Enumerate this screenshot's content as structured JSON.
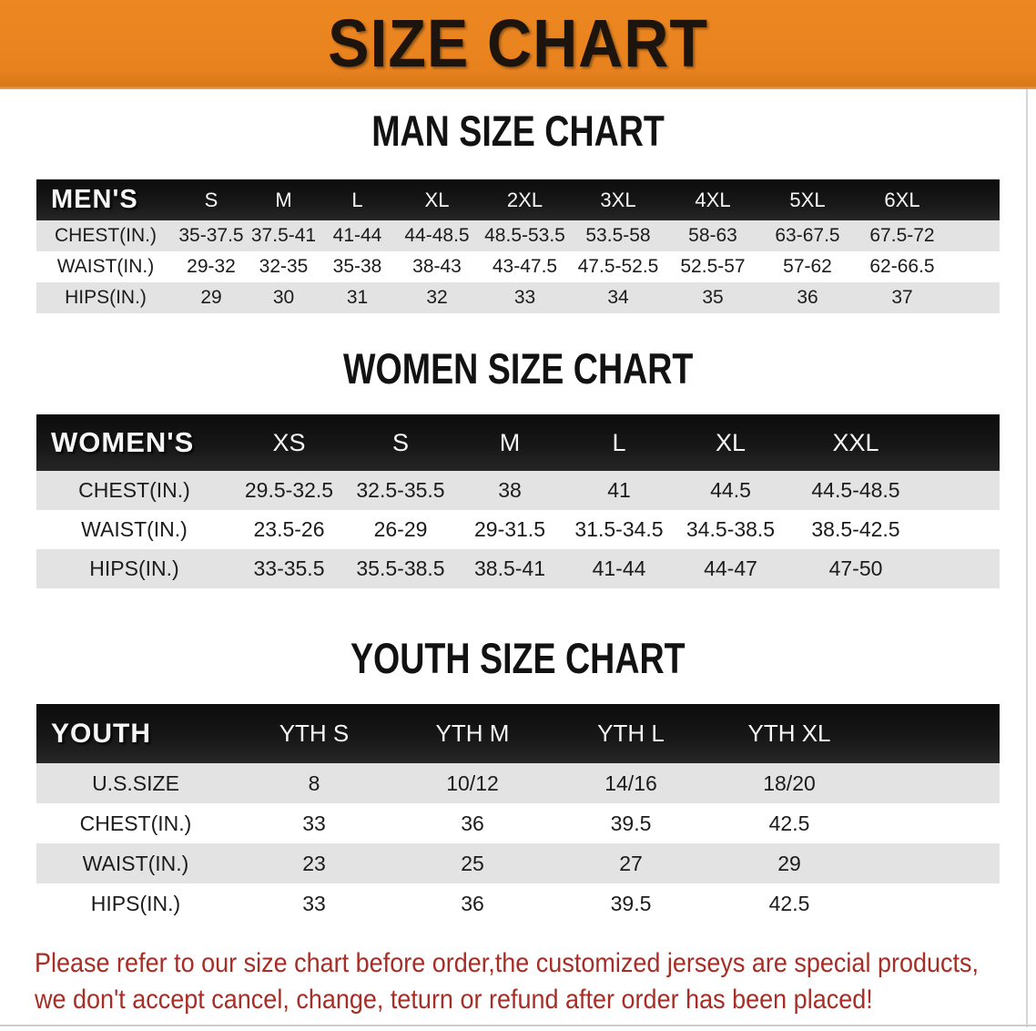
{
  "banner": {
    "title": "SIZE CHART",
    "bg_color": "#E8821E",
    "text_color": "#1C140D"
  },
  "colors": {
    "header_bar": "#151515",
    "row_gray": "#E3E3E3",
    "row_white": "#FFFFFF",
    "disclaimer_red": "#A62E26"
  },
  "sections": {
    "men": {
      "title": "MAN SIZE CHART"
    },
    "women": {
      "title": "WOMEN SIZE CHART"
    },
    "youth": {
      "title": "YOUTH SIZE CHART"
    }
  },
  "tables": {
    "men": {
      "corner_label": "MEN'S",
      "sizes": [
        "S",
        "M",
        "L",
        "XL",
        "2XL",
        "3XL",
        "4XL",
        "5XL",
        "6XL"
      ],
      "rows": [
        {
          "label": "CHEST(IN.)",
          "values": [
            "35-37.5",
            "37.5-41",
            "41-44",
            "44-48.5",
            "48.5-53.5",
            "53.5-58",
            "58-63",
            "63-67.5",
            "67.5-72"
          ]
        },
        {
          "label": "WAIST(IN.)",
          "values": [
            "29-32",
            "32-35",
            "35-38",
            "38-43",
            "43-47.5",
            "47.5-52.5",
            "52.5-57",
            "57-62",
            "62-66.5"
          ]
        },
        {
          "label": "HIPS(IN.)",
          "values": [
            "29",
            "30",
            "31",
            "32",
            "33",
            "34",
            "35",
            "36",
            "37"
          ]
        }
      ]
    },
    "women": {
      "corner_label": "WOMEN'S",
      "sizes": [
        "XS",
        "S",
        "M",
        "L",
        "XL",
        "XXL"
      ],
      "rows": [
        {
          "label": "CHEST(IN.)",
          "values": [
            "29.5-32.5",
            "32.5-35.5",
            "38",
            "41",
            "44.5",
            "44.5-48.5"
          ]
        },
        {
          "label": "WAIST(IN.)",
          "values": [
            "23.5-26",
            "26-29",
            "29-31.5",
            "31.5-34.5",
            "34.5-38.5",
            "38.5-42.5"
          ]
        },
        {
          "label": "HIPS(IN.)",
          "values": [
            "33-35.5",
            "35.5-38.5",
            "38.5-41",
            "41-44",
            "44-47",
            "47-50"
          ]
        }
      ]
    },
    "youth": {
      "corner_label": "YOUTH",
      "sizes": [
        "YTH S",
        "YTH M",
        "YTH L",
        "YTH XL"
      ],
      "rows": [
        {
          "label": "U.S.SIZE",
          "values": [
            "8",
            "10/12",
            "14/16",
            "18/20"
          ]
        },
        {
          "label": "CHEST(IN.)",
          "values": [
            "33",
            "36",
            "39.5",
            "42.5"
          ]
        },
        {
          "label": "WAIST(IN.)",
          "values": [
            "23",
            "25",
            "27",
            "29"
          ]
        },
        {
          "label": "HIPS(IN.)",
          "values": [
            "33",
            "36",
            "39.5",
            "42.5"
          ]
        }
      ]
    }
  },
  "disclaimer": {
    "lines": [
      "Please refer to our size chart before order,the customized jerseys are special products,",
      "we don't accept cancel, change, teturn or refund after order has been placed!"
    ]
  }
}
